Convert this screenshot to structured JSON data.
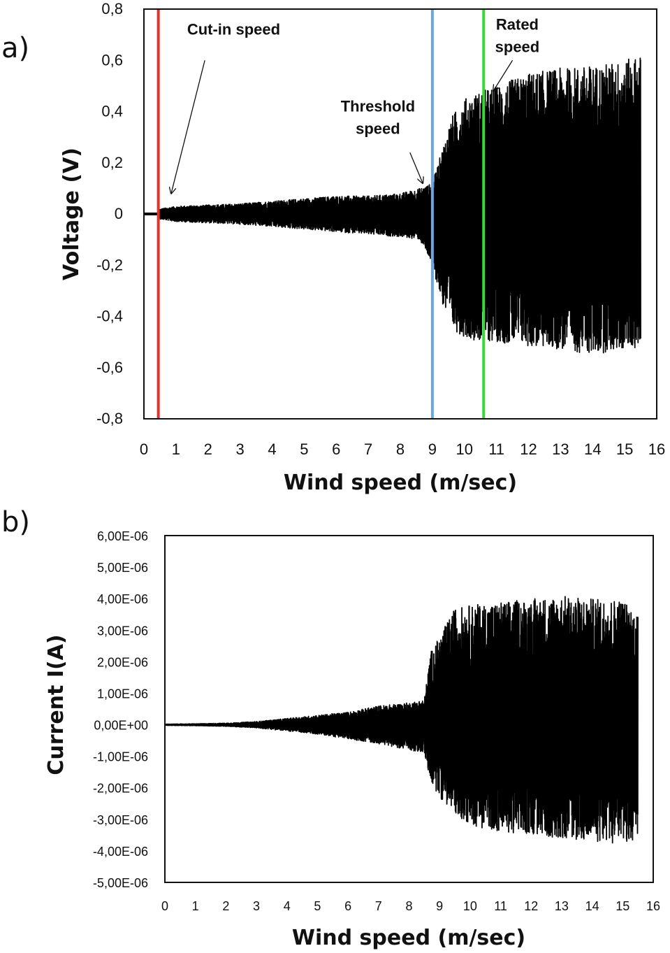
{
  "chart_data": [
    {
      "type": "line",
      "panel_label": "a)",
      "title": "",
      "xlabel": "Wind speed (m/sec)",
      "ylabel": "Voltage (V)",
      "xlim": [
        0,
        16
      ],
      "ylim": [
        -0.8,
        0.8
      ],
      "x_ticks": [
        "0",
        "1",
        "2",
        "3",
        "4",
        "5",
        "6",
        "7",
        "8",
        "9",
        "10",
        "11",
        "12",
        "13",
        "14",
        "15",
        "16"
      ],
      "y_ticks": [
        "0,8",
        "0,6",
        "0,4",
        "0,2",
        "0",
        "-0,2",
        "-0,4",
        "-0,6",
        "-0,8"
      ],
      "grid": false,
      "legend": "none",
      "signal_color": "#000000",
      "envelope": {
        "x": [
          0.0,
          0.4,
          0.5,
          1.0,
          2.0,
          3.0,
          4.0,
          5.0,
          6.0,
          7.0,
          8.0,
          8.6,
          9.0,
          9.3,
          9.6,
          10.0,
          10.5,
          11.0,
          12.0,
          13.0,
          14.0,
          15.0,
          15.5
        ],
        "upper": [
          0.0,
          0.0,
          0.02,
          0.03,
          0.035,
          0.04,
          0.05,
          0.06,
          0.07,
          0.07,
          0.08,
          0.1,
          0.12,
          0.25,
          0.38,
          0.45,
          0.48,
          0.5,
          0.55,
          0.57,
          0.58,
          0.6,
          0.62
        ],
        "lower": [
          0.0,
          0.0,
          -0.02,
          -0.03,
          -0.035,
          -0.04,
          -0.05,
          -0.06,
          -0.07,
          -0.08,
          -0.09,
          -0.1,
          -0.2,
          -0.35,
          -0.45,
          -0.48,
          -0.5,
          -0.5,
          -0.52,
          -0.53,
          -0.55,
          -0.53,
          -0.52
        ]
      },
      "markers": [
        {
          "x": 0.45,
          "color": "#e8302a",
          "label": "Cut-in speed"
        },
        {
          "x": 9.0,
          "color": "#6aa6e0",
          "label": "Threshold speed"
        },
        {
          "x": 10.6,
          "color": "#3ad63a",
          "label": "Rated speed"
        }
      ],
      "annotations": [
        {
          "lines": [
            "Cut-in speed"
          ],
          "text_x": 2.8,
          "text_y": 0.7,
          "arrow_from": [
            1.9,
            0.6
          ],
          "arrow_to": [
            0.85,
            0.08
          ]
        },
        {
          "lines": [
            "Threshold",
            "speed"
          ],
          "text_x": 7.3,
          "text_y": 0.4,
          "arrow_from": [
            8.3,
            0.24
          ],
          "arrow_to": [
            8.7,
            0.12
          ]
        },
        {
          "lines": [
            "Rated",
            "speed"
          ],
          "text_x": 11.65,
          "text_y": 0.72,
          "arrow_from": [
            11.5,
            0.6
          ],
          "arrow_to": [
            10.9,
            0.48
          ]
        }
      ]
    },
    {
      "type": "line",
      "panel_label": "b)",
      "title": "",
      "xlabel": "Wind speed (m/sec)",
      "ylabel": "Current I(A)",
      "xlim": [
        0,
        16
      ],
      "ylim": [
        -5e-06,
        6e-06
      ],
      "x_ticks": [
        "0",
        "1",
        "2",
        "3",
        "4",
        "5",
        "6",
        "7",
        "8",
        "9",
        "10",
        "11",
        "12",
        "13",
        "14",
        "15",
        "16"
      ],
      "y_ticks": [
        "6,00E-06",
        "5,00E-06",
        "4,00E-06",
        "3,00E-06",
        "2,00E-06",
        "1,00E-06",
        "0,00E+00",
        "-1,00E-06",
        "-2,00E-06",
        "-3,00E-06",
        "-4,00E-06",
        "-5,00E-06"
      ],
      "grid": false,
      "legend": "none",
      "signal_color": "#000000",
      "envelope": {
        "x": [
          0.0,
          1.0,
          2.0,
          3.0,
          4.0,
          5.0,
          6.0,
          7.0,
          8.0,
          8.5,
          8.7,
          9.0,
          9.5,
          10.0,
          11.0,
          12.0,
          13.0,
          14.0,
          15.0,
          15.5
        ],
        "upper": [
          2e-08,
          3e-08,
          5e-08,
          1e-07,
          2e-07,
          3e-07,
          4e-07,
          6e-07,
          7e-07,
          8e-07,
          2.3e-06,
          2.8e-06,
          3.7e-06,
          3.8e-06,
          3.9e-06,
          4e-06,
          4.1e-06,
          4e-06,
          4e-06,
          3.5e-06
        ],
        "lower": [
          -2e-08,
          -3e-08,
          -5e-08,
          -1e-07,
          -2e-07,
          -3e-07,
          -4.5e-07,
          -6e-07,
          -8e-07,
          -9e-07,
          -1.8e-06,
          -2.3e-06,
          -2.8e-06,
          -3.2e-06,
          -3.4e-06,
          -3.5e-06,
          -3.6e-06,
          -3.7e-06,
          -3.8e-06,
          -3.6e-06
        ]
      }
    }
  ]
}
